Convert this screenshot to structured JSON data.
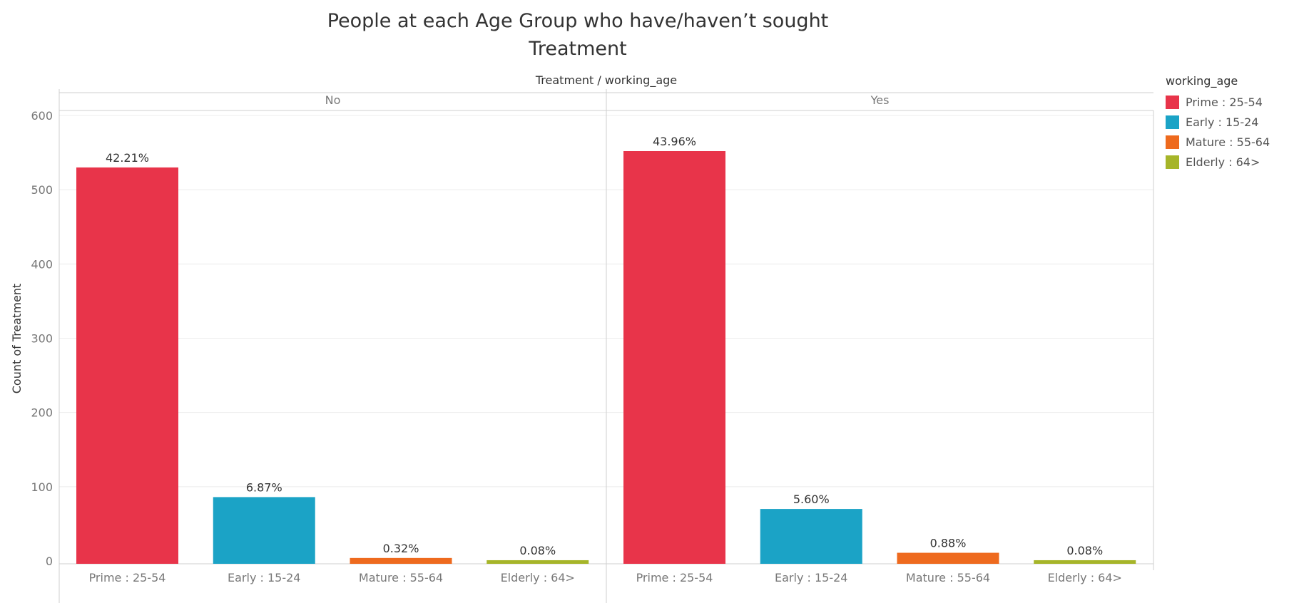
{
  "title_line1": "People at each Age Group who have/haven’t sought",
  "title_line2": "Treatment",
  "column_header": "Treatment  /  working_age",
  "legend": {
    "title": "working_age",
    "items": [
      {
        "label": "Prime : 25-54",
        "color": "#e8344a"
      },
      {
        "label": "Early : 15-24",
        "color": "#1ba3c6"
      },
      {
        "label": "Mature : 55-64",
        "color": "#ee6a1e"
      },
      {
        "label": "Elderly : 64>",
        "color": "#a6b529"
      }
    ]
  },
  "chart_data": {
    "type": "bar",
    "ylabel": "Count of Treatment",
    "ylim": [
      0,
      600
    ],
    "yticks": [
      0,
      100,
      200,
      300,
      400,
      500,
      600
    ],
    "grid": true,
    "categories": [
      "Prime : 25-54",
      "Early : 15-24",
      "Mature : 55-64",
      "Elderly : 64>"
    ],
    "panels": [
      {
        "name": "No",
        "values": [
          530,
          86,
          4,
          1
        ],
        "labels": [
          "42.21%",
          "6.87%",
          "0.32%",
          "0.08%"
        ]
      },
      {
        "name": "Yes",
        "values": [
          552,
          70,
          11,
          1
        ],
        "labels": [
          "43.96%",
          "5.60%",
          "0.88%",
          "0.08%"
        ]
      }
    ]
  }
}
